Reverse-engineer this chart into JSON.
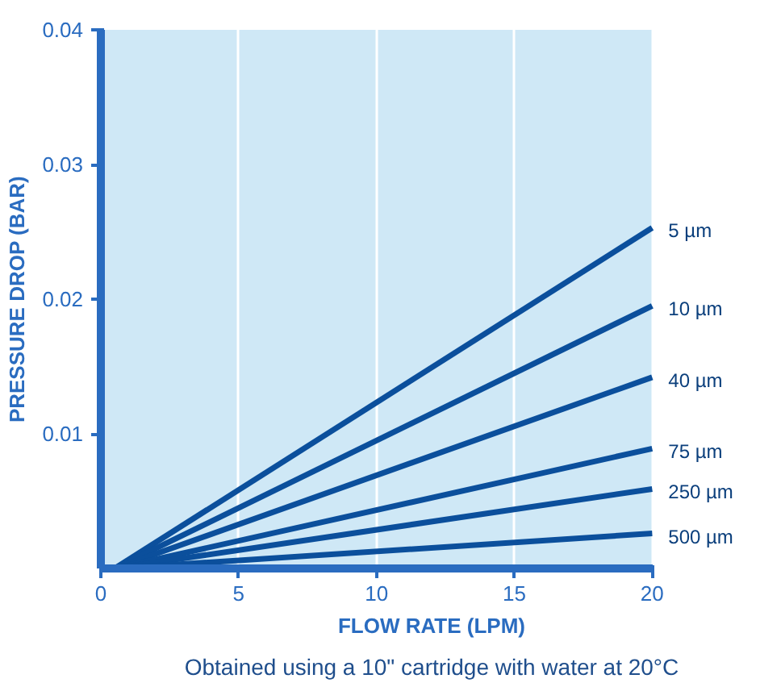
{
  "chart_data": {
    "type": "line",
    "xlabel": "FLOW RATE (LPM)",
    "ylabel": "PRESSURE DROP (BAR)",
    "annotations": [
      "Obtained using a 10\" cartridge with water at 20°C"
    ],
    "x": [
      0.5,
      20
    ],
    "xlim": [
      0,
      20
    ],
    "xticks": [
      0,
      5,
      10,
      15,
      20
    ],
    "ylim": [
      0,
      0.04
    ],
    "yticks": [
      0.01,
      0.02,
      0.03,
      0.04
    ],
    "grid": "x",
    "marker": "none",
    "line_style": "solid",
    "series": [
      {
        "name": "5 µm",
        "color": "#0b4f9c",
        "values": [
          0,
          0.0253
        ]
      },
      {
        "name": "10 µm",
        "color": "#0b4f9c",
        "values": [
          0,
          0.0195
        ]
      },
      {
        "name": "40 µm",
        "color": "#0b4f9c",
        "values": [
          0,
          0.0142
        ]
      },
      {
        "name": "75 µm",
        "color": "#0b4f9c",
        "values": [
          0,
          0.0089
        ]
      },
      {
        "name": "250 µm",
        "color": "#0b4f9c",
        "values": [
          0,
          0.0059
        ]
      },
      {
        "name": "500 µm",
        "color": "#0b4f9c",
        "values": [
          0,
          0.0026
        ]
      }
    ]
  }
}
